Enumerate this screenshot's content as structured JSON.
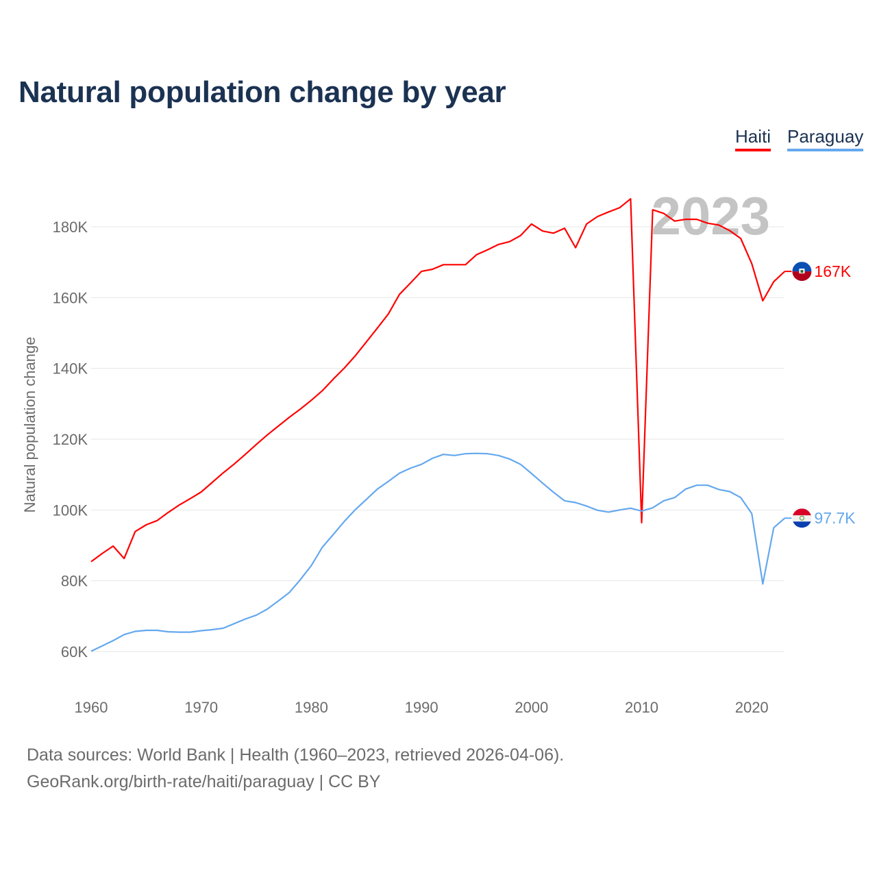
{
  "title": "Natural population change by year",
  "legend": [
    {
      "label": "Haiti",
      "color": "#ff0000"
    },
    {
      "label": "Paraguay",
      "color": "#64a8ee"
    }
  ],
  "footer": {
    "line1": "Data sources: World Bank | Health (1960–2023, retrieved 2026-04-06).",
    "line2": "GeoRank.org/birth-rate/haiti/paraguay | CC BY"
  },
  "chart_data": {
    "type": "line",
    "title": "Natural population change by year",
    "xlabel": "",
    "ylabel": "Natural population change",
    "xlim": [
      1960,
      2023
    ],
    "ylim": [
      50000,
      190000
    ],
    "x_ticks": [
      "1960",
      "1970",
      "1980",
      "1990",
      "2000",
      "2010",
      "2020"
    ],
    "y_ticks": [
      "60K",
      "80K",
      "100K",
      "120K",
      "140K",
      "160K",
      "180K"
    ],
    "y_tick_values": [
      60000,
      80000,
      100000,
      120000,
      140000,
      160000,
      180000
    ],
    "grid": "horizontal",
    "legend_position": "top-right",
    "year_watermark": "2023",
    "x": [
      1960,
      1961,
      1962,
      1963,
      1964,
      1965,
      1966,
      1967,
      1968,
      1969,
      1970,
      1971,
      1972,
      1973,
      1974,
      1975,
      1976,
      1977,
      1978,
      1979,
      1980,
      1981,
      1982,
      1983,
      1984,
      1985,
      1986,
      1987,
      1988,
      1989,
      1990,
      1991,
      1992,
      1993,
      1994,
      1995,
      1996,
      1997,
      1998,
      1999,
      2000,
      2001,
      2002,
      2003,
      2004,
      2005,
      2006,
      2007,
      2008,
      2009,
      2010,
      2011,
      2012,
      2013,
      2014,
      2015,
      2016,
      2017,
      2018,
      2019,
      2020,
      2021,
      2022,
      2023
    ],
    "series": [
      {
        "name": "Haiti",
        "color": "#ff0000",
        "end_label": "167K",
        "values": [
          85400,
          87700,
          89800,
          86300,
          93900,
          95800,
          97000,
          99300,
          101400,
          103200,
          105100,
          107800,
          110500,
          113000,
          115700,
          118500,
          121200,
          123700,
          126200,
          128500,
          131000,
          133700,
          137000,
          140100,
          143600,
          147500,
          151400,
          155400,
          160900,
          164100,
          167400,
          168000,
          169300,
          169300,
          169300,
          172100,
          173500,
          175000,
          175800,
          177500,
          180800,
          178800,
          178200,
          179600,
          174100,
          180800,
          182900,
          184200,
          185400,
          187900,
          96400,
          184800,
          183800,
          181600,
          182100,
          182100,
          181000,
          180500,
          178900,
          176700,
          169600,
          159100,
          164500,
          167400
        ]
      },
      {
        "name": "Paraguay",
        "color": "#64a8ee",
        "end_label": "97.7K",
        "values": [
          60100,
          61600,
          63100,
          64800,
          65700,
          66000,
          66000,
          65600,
          65500,
          65500,
          65900,
          66200,
          66600,
          67900,
          69200,
          70300,
          72000,
          74300,
          76700,
          80300,
          84300,
          89500,
          93100,
          96800,
          100100,
          103000,
          105900,
          108100,
          110400,
          111800,
          112900,
          114600,
          115700,
          115400,
          115900,
          116000,
          115900,
          115400,
          114400,
          112900,
          110300,
          107600,
          105000,
          102600,
          102100,
          101100,
          99900,
          99400,
          100000,
          100500,
          99700,
          100600,
          102600,
          103500,
          105900,
          107000,
          107000,
          105800,
          105200,
          103500,
          99000,
          79100,
          95000,
          97700
        ]
      }
    ]
  }
}
